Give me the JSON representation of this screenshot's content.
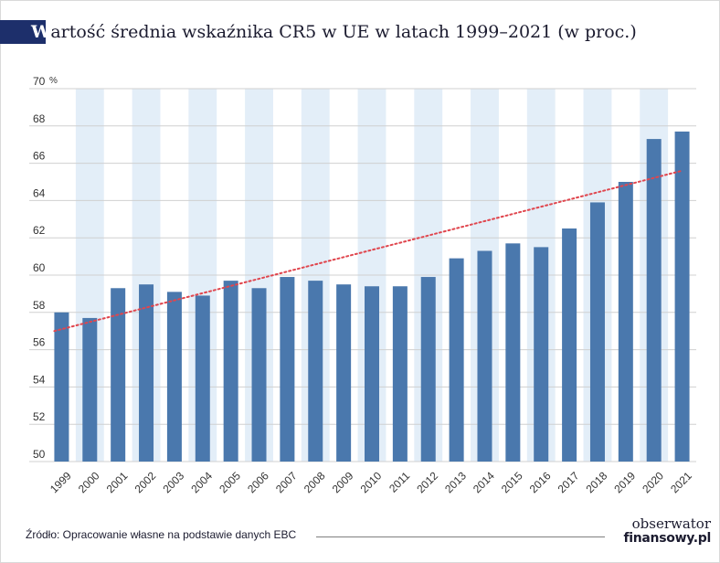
{
  "title": {
    "initial": "W",
    "rest": "artość średnia wskaźnika CR5 w UE w latach 1999–2021 (w proc.)"
  },
  "source": "Źródło: Opracowanie własne na podstawie danych EBC",
  "logo": {
    "line1": "obserwator",
    "line2": "finansowy.pl"
  },
  "colors": {
    "bar": "#4a78ad",
    "band": "#e3eef8",
    "trend": "#e0464e",
    "grid": "#d0d0d0",
    "title_block": "#1d2f6b"
  },
  "chart_data": {
    "type": "bar",
    "categories": [
      "1999",
      "2000",
      "2001",
      "2002",
      "2003",
      "2004",
      "2005",
      "2006",
      "2007",
      "2008",
      "2009",
      "2010",
      "2011",
      "2012",
      "2013",
      "2014",
      "2015",
      "2016",
      "2017",
      "2018",
      "2019",
      "2020",
      "2021"
    ],
    "values": [
      58.0,
      57.7,
      59.3,
      59.5,
      59.1,
      58.9,
      59.7,
      59.3,
      59.9,
      59.7,
      59.5,
      59.4,
      59.4,
      59.9,
      60.9,
      61.3,
      61.7,
      61.5,
      62.5,
      63.9,
      65.0,
      67.3,
      67.7
    ],
    "ylim": [
      50,
      70
    ],
    "yticks": [
      50,
      52,
      54,
      56,
      58,
      60,
      62,
      64,
      66,
      68,
      70
    ],
    "ytick_labels": [
      "50",
      "52",
      "54",
      "56",
      "58",
      "60",
      "62",
      "64",
      "66",
      "68",
      "70"
    ],
    "y_unit": "%",
    "trendline": {
      "style": "dotted",
      "start": 57.0,
      "end": 65.6
    },
    "grid": true,
    "xlabel": "",
    "ylabel": ""
  }
}
